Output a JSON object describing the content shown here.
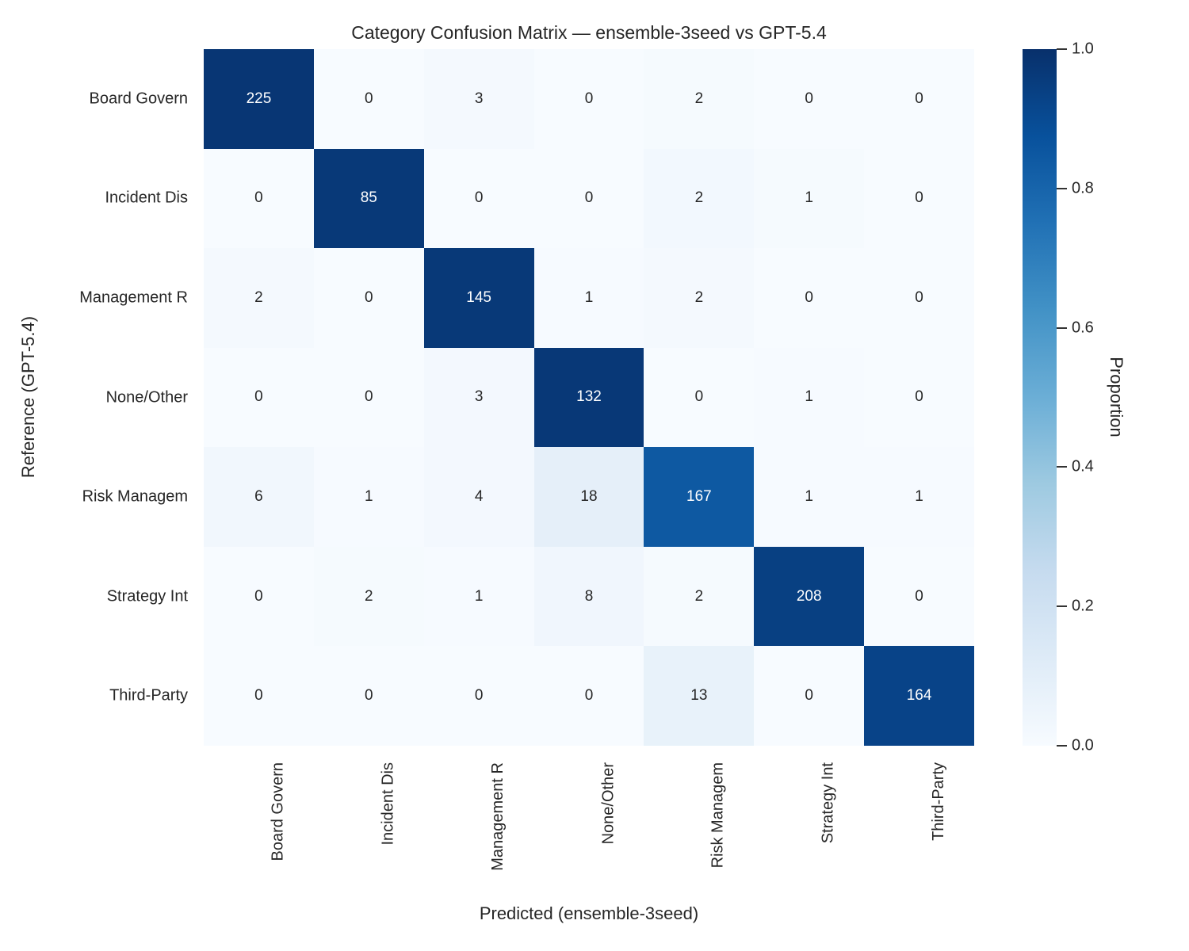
{
  "title": "Category Confusion Matrix — ensemble-3seed vs GPT-5.4",
  "chart_data": {
    "type": "heatmap",
    "title": "Category Confusion Matrix — ensemble-3seed vs GPT-5.4",
    "xlabel": "Predicted (ensemble-3seed)",
    "ylabel": "Reference (GPT-5.4)",
    "x_categories": [
      "Board Govern",
      "Incident Dis",
      "Management R",
      "None/Other",
      "Risk Managem",
      "Strategy Int",
      "Third-Party"
    ],
    "y_categories": [
      "Board Govern",
      "Incident Dis",
      "Management R",
      "None/Other",
      "Risk Managem",
      "Strategy Int",
      "Third-Party"
    ],
    "matrix": [
      [
        225,
        0,
        3,
        0,
        2,
        0,
        0
      ],
      [
        0,
        85,
        0,
        0,
        2,
        1,
        0
      ],
      [
        2,
        0,
        145,
        1,
        2,
        0,
        0
      ],
      [
        0,
        0,
        3,
        132,
        0,
        1,
        0
      ],
      [
        6,
        1,
        4,
        18,
        167,
        1,
        1
      ],
      [
        0,
        2,
        1,
        8,
        2,
        208,
        0
      ],
      [
        0,
        0,
        0,
        0,
        13,
        0,
        164
      ]
    ],
    "cell_shading": "row-proportion (value divided by row sum)",
    "colormap": "Blues",
    "colormap_stops": [
      "#f7fbff",
      "#deebf7",
      "#c6dbef",
      "#9ecae1",
      "#6baed6",
      "#4292c6",
      "#2171b5",
      "#08519c",
      "#08306b"
    ],
    "grid": false,
    "colorbar": {
      "label": "Proportion",
      "tick_labels": [
        "1.0",
        "0.8",
        "0.6",
        "0.4",
        "0.2",
        "0.0"
      ],
      "tick_values": [
        1.0,
        0.8,
        0.6,
        0.4,
        0.2,
        0.0
      ],
      "range": [
        0.0,
        1.0
      ],
      "position": "right"
    },
    "text_colors": {
      "on_dark": "#ffffff",
      "on_light": "#262626"
    }
  }
}
